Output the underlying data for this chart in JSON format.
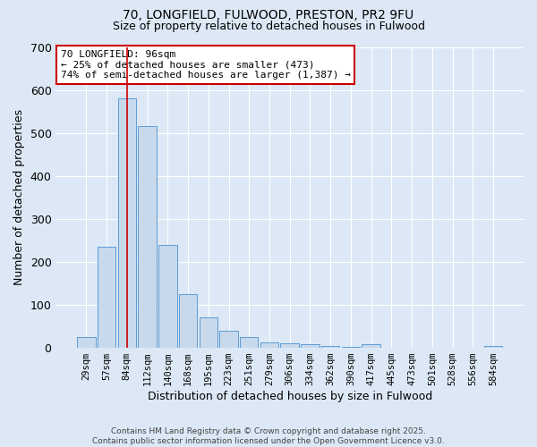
{
  "title1": "70, LONGFIELD, FULWOOD, PRESTON, PR2 9FU",
  "title2": "Size of property relative to detached houses in Fulwood",
  "xlabel": "Distribution of detached houses by size in Fulwood",
  "ylabel": "Number of detached properties",
  "categories": [
    "29sqm",
    "57sqm",
    "84sqm",
    "112sqm",
    "140sqm",
    "168sqm",
    "195sqm",
    "223sqm",
    "251sqm",
    "279sqm",
    "306sqm",
    "334sqm",
    "362sqm",
    "390sqm",
    "417sqm",
    "445sqm",
    "473sqm",
    "501sqm",
    "528sqm",
    "556sqm",
    "584sqm"
  ],
  "values": [
    25,
    235,
    580,
    515,
    240,
    125,
    70,
    40,
    25,
    12,
    10,
    8,
    5,
    3,
    8,
    1,
    1,
    0,
    0,
    0,
    5
  ],
  "bar_color": "#c9d9ec",
  "bar_edge_color": "#5b9bd5",
  "red_line_index": 2,
  "annotation_title": "70 LONGFIELD: 96sqm",
  "annotation_line2": "← 25% of detached houses are smaller (473)",
  "annotation_line3": "74% of semi-detached houses are larger (1,387) →",
  "annotation_box_color": "#ffffff",
  "annotation_box_edge": "#cc0000",
  "red_line_color": "#cc0000",
  "ylim": [
    0,
    700
  ],
  "background_color": "#dce8f5",
  "plot_bg_color": "#dce8f5",
  "grid_color": "#ffffff",
  "footer": "Contains HM Land Registry data © Crown copyright and database right 2025.\nContains public sector information licensed under the Open Government Licence v3.0."
}
